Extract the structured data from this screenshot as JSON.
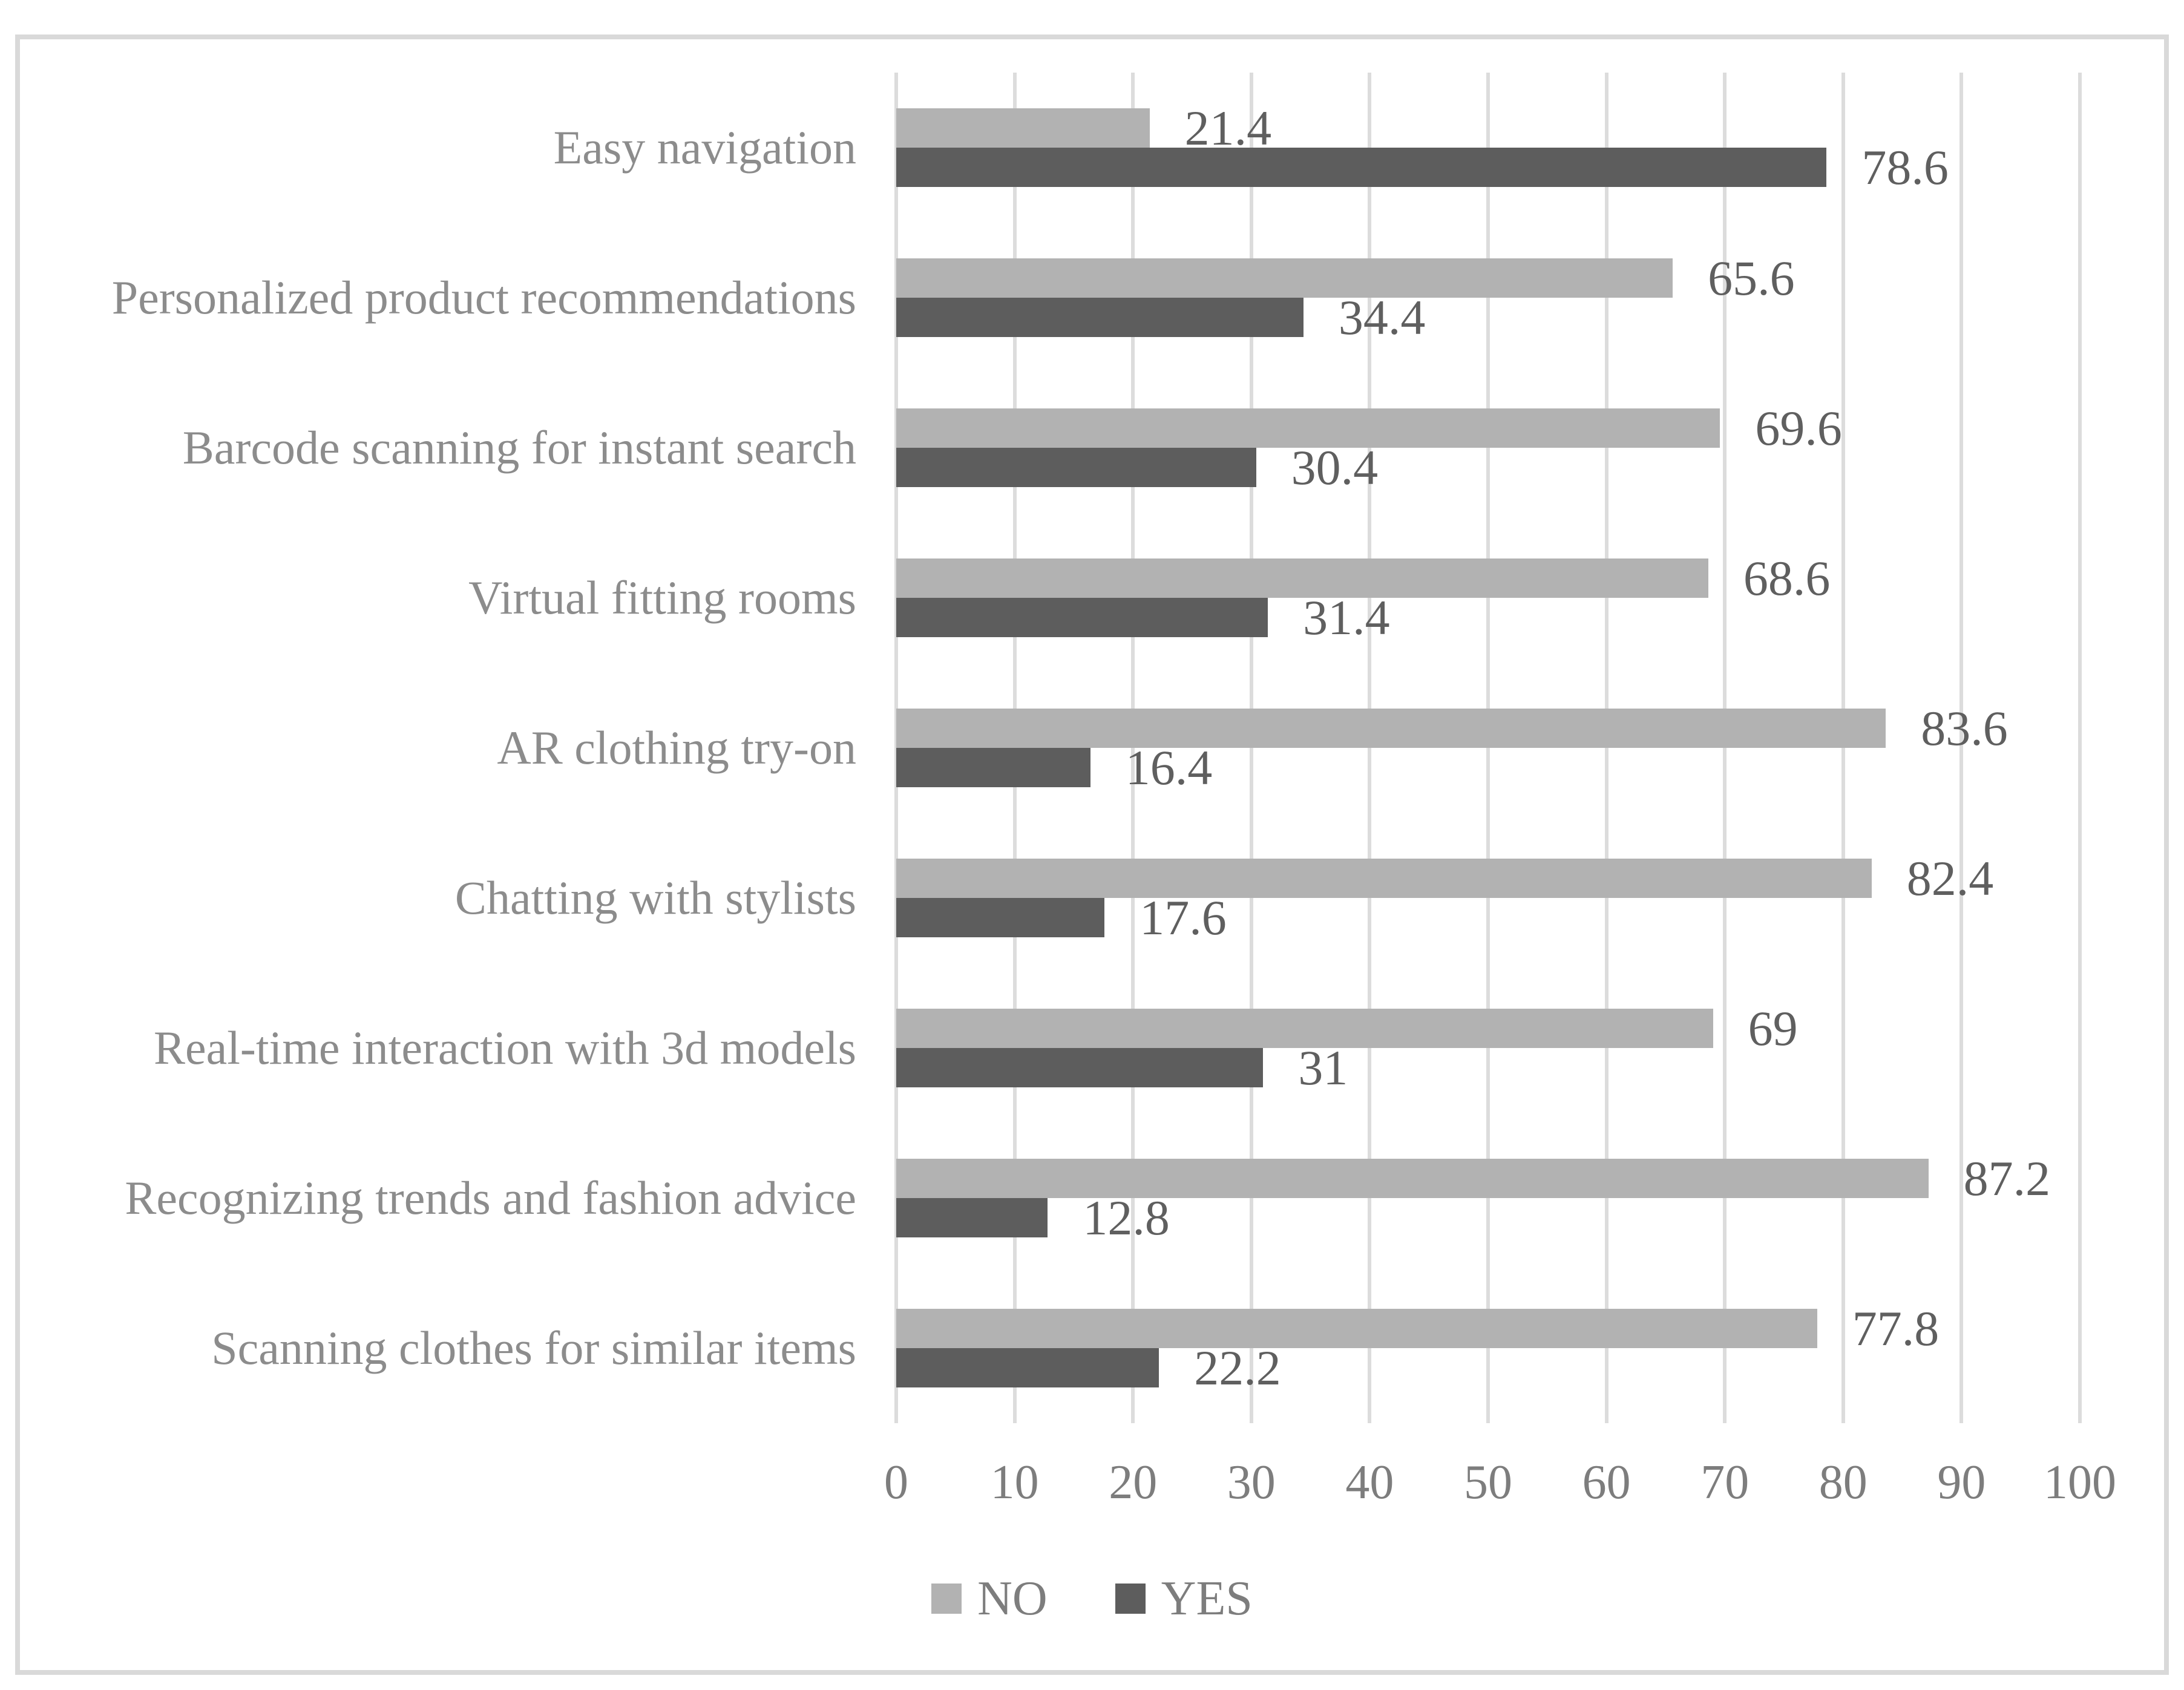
{
  "chart_data": {
    "type": "bar",
    "orientation": "horizontal",
    "title": "",
    "categories": [
      "Easy navigation",
      "Personalized product recommendations",
      "Barcode scanning for instant search",
      "Virtual fitting rooms",
      "AR clothing try-on",
      "Chatting with stylists",
      "Real-time interaction with 3d models",
      "Recognizing trends and fashion advice",
      "Scanning clothes for similar items"
    ],
    "series": [
      {
        "name": "NO",
        "color": "#b2b2b2",
        "values": [
          21.4,
          65.6,
          69.6,
          68.6,
          83.6,
          82.4,
          69,
          87.2,
          77.8
        ],
        "value_labels": [
          "21.4",
          "65.6",
          "69.6",
          "68.6",
          "83.6",
          "82.4",
          "69",
          "87.2",
          "77.8"
        ]
      },
      {
        "name": "YES",
        "color": "#5d5d5d",
        "values": [
          78.6,
          34.4,
          30.4,
          31.4,
          16.4,
          17.6,
          31,
          12.8,
          22.2
        ],
        "value_labels": [
          "78.6",
          "34.4",
          "30.4",
          "31.4",
          "16.4",
          "17.6",
          "31",
          "12.8",
          "22.2"
        ]
      }
    ],
    "xlim": [
      0,
      100
    ],
    "xticks": [
      0,
      10,
      20,
      30,
      40,
      50,
      60,
      70,
      80,
      90,
      100
    ],
    "grid": "vertical",
    "legend_position": "bottom"
  },
  "styles": {
    "bar_no": "#b2b2b2",
    "bar_yes": "#5d5d5d",
    "gridline": "#dcdcdc",
    "frame_border": "#d9d9d9",
    "category_text": "#8c8c8c",
    "axis_text": "#7d7d7d",
    "value_text": "#5f5f5f",
    "background": "#ffffff"
  }
}
